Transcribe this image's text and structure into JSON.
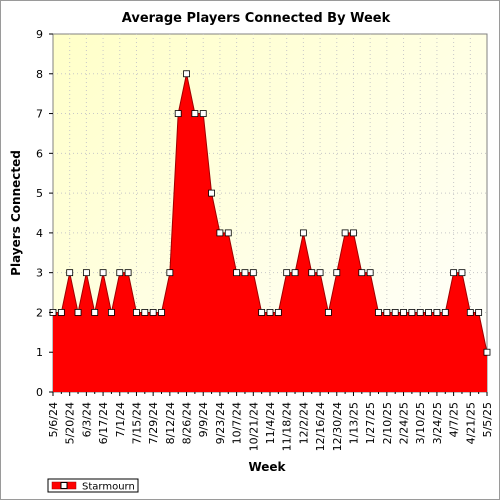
{
  "chart_data": {
    "type": "area",
    "title": "Average Players Connected By Week",
    "xlabel": "Week",
    "ylabel": "Players Connected",
    "ylim": [
      0,
      9
    ],
    "yticks": [
      "0",
      "1",
      "2",
      "3",
      "4",
      "5",
      "6",
      "7",
      "8",
      "9"
    ],
    "grid": true,
    "legend_position": "bottom-left",
    "x_tick_labels": [
      "5/6/24",
      "5/20/24",
      "6/3/24",
      "6/17/24",
      "7/1/24",
      "7/15/24",
      "7/29/24",
      "8/12/24",
      "8/26/24",
      "9/9/24",
      "9/23/24",
      "10/7/24",
      "10/21/24",
      "11/4/24",
      "11/18/24",
      "12/2/24",
      "12/16/24",
      "12/30/24",
      "1/13/25",
      "1/27/25",
      "2/10/25",
      "2/24/25",
      "3/10/25",
      "3/24/25",
      "4/7/25",
      "4/21/25",
      "5/5/25"
    ],
    "x_weeks": [
      "5/6/24",
      "5/13/24",
      "5/20/24",
      "5/27/24",
      "6/3/24",
      "6/10/24",
      "6/17/24",
      "6/24/24",
      "7/1/24",
      "7/8/24",
      "7/15/24",
      "7/22/24",
      "7/29/24",
      "8/5/24",
      "8/12/24",
      "8/19/24",
      "8/26/24",
      "9/2/24",
      "9/9/24",
      "9/16/24",
      "9/23/24",
      "9/30/24",
      "10/7/24",
      "10/14/24",
      "10/21/24",
      "10/28/24",
      "11/4/24",
      "11/11/24",
      "11/18/24",
      "11/25/24",
      "12/2/24",
      "12/9/24",
      "12/16/24",
      "12/23/24",
      "12/30/24",
      "1/6/25",
      "1/13/25",
      "1/20/25",
      "1/27/25",
      "2/3/25",
      "2/10/25",
      "2/17/25",
      "2/24/25",
      "3/3/25",
      "3/10/25",
      "3/17/25",
      "3/24/25",
      "3/31/25",
      "4/7/25",
      "4/14/25",
      "4/21/25",
      "4/28/25",
      "5/5/25"
    ],
    "series": [
      {
        "name": "Starmourn",
        "color": "#ff0000",
        "values": [
          2,
          2,
          3,
          2,
          3,
          2,
          3,
          2,
          3,
          3,
          2,
          2,
          2,
          2,
          3,
          7,
          8,
          7,
          7,
          5,
          4,
          4,
          3,
          3,
          3,
          2,
          2,
          2,
          3,
          3,
          4,
          3,
          3,
          2,
          3,
          4,
          4,
          3,
          3,
          2,
          2,
          2,
          2,
          2,
          2,
          2,
          2,
          2,
          3,
          3,
          2,
          2,
          1
        ]
      }
    ],
    "colors": {
      "plot_background_top": "#ffffc8",
      "plot_background_bottom": "#ffffff",
      "area_fill": "#ff0000",
      "area_stroke": "#a00000",
      "marker_fill": "#ffffff"
    }
  }
}
